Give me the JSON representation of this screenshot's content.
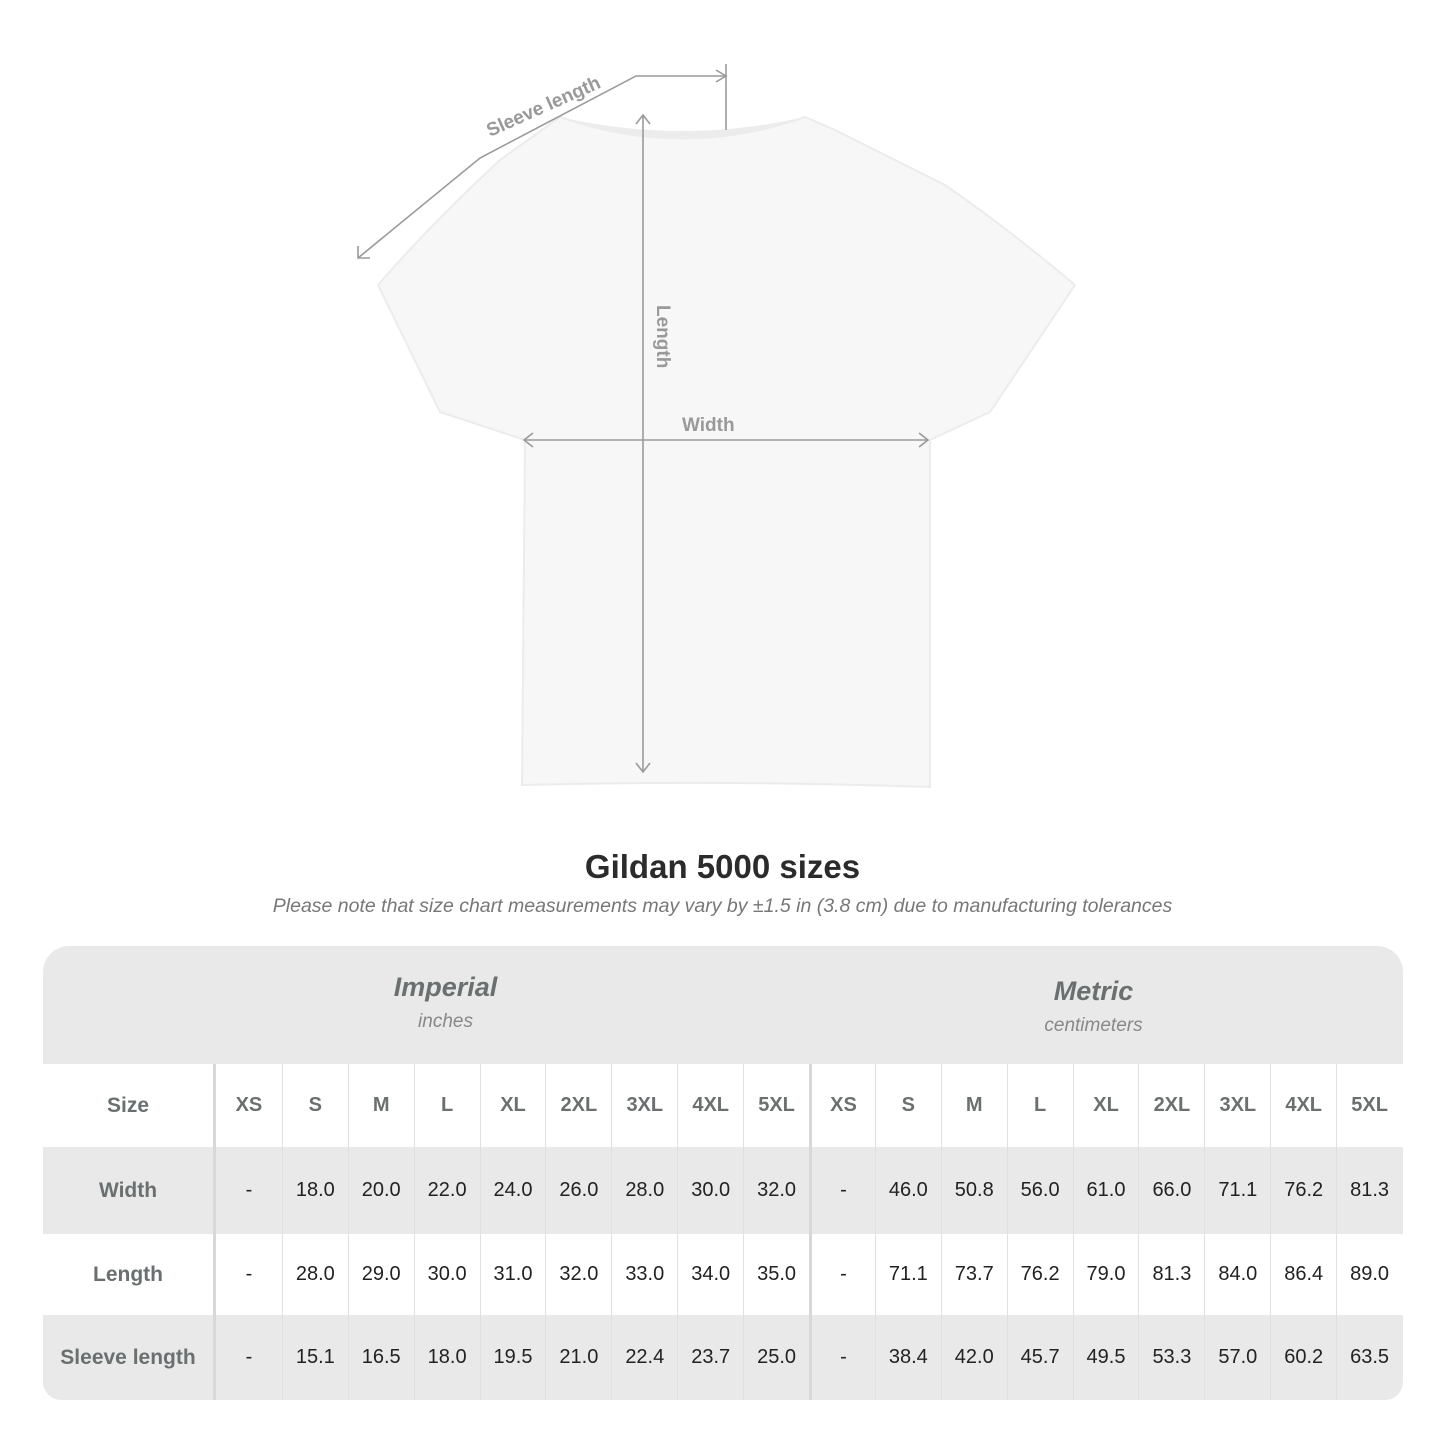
{
  "diagram": {
    "labels": {
      "sleeve": "Sleeve length",
      "length": "Length",
      "width": "Width"
    },
    "colors": {
      "line": "#9a9a9a",
      "label": "#999999",
      "shirt": "#f7f7f7"
    }
  },
  "title": "Gildan 5000 sizes",
  "note": "Please note that size chart measurements may vary by ±1.5 in (3.8 cm) due to manufacturing tolerances",
  "table": {
    "imperial": {
      "name": "Imperial",
      "unit": "inches"
    },
    "metric": {
      "name": "Metric",
      "unit": "centimeters"
    },
    "size_label": "Size",
    "sizes": [
      "XS",
      "S",
      "M",
      "L",
      "XL",
      "2XL",
      "3XL",
      "4XL",
      "5XL"
    ],
    "rows": [
      {
        "label": "Width",
        "imperial": [
          "-",
          "18.0",
          "20.0",
          "22.0",
          "24.0",
          "26.0",
          "28.0",
          "30.0",
          "32.0"
        ],
        "metric": [
          "-",
          "46.0",
          "50.8",
          "56.0",
          "61.0",
          "66.0",
          "71.1",
          "76.2",
          "81.3"
        ]
      },
      {
        "label": "Length",
        "imperial": [
          "-",
          "28.0",
          "29.0",
          "30.0",
          "31.0",
          "32.0",
          "33.0",
          "34.0",
          "35.0"
        ],
        "metric": [
          "-",
          "71.1",
          "73.7",
          "76.2",
          "79.0",
          "81.3",
          "84.0",
          "86.4",
          "89.0"
        ]
      },
      {
        "label": "Sleeve length",
        "imperial": [
          "-",
          "15.1",
          "16.5",
          "18.0",
          "19.5",
          "21.0",
          "22.4",
          "23.7",
          "25.0"
        ],
        "metric": [
          "-",
          "38.4",
          "42.0",
          "45.7",
          "49.5",
          "53.3",
          "57.0",
          "60.2",
          "63.5"
        ]
      }
    ],
    "colors": {
      "band": "#e9e9e9",
      "header_text": "#6a7070"
    }
  }
}
